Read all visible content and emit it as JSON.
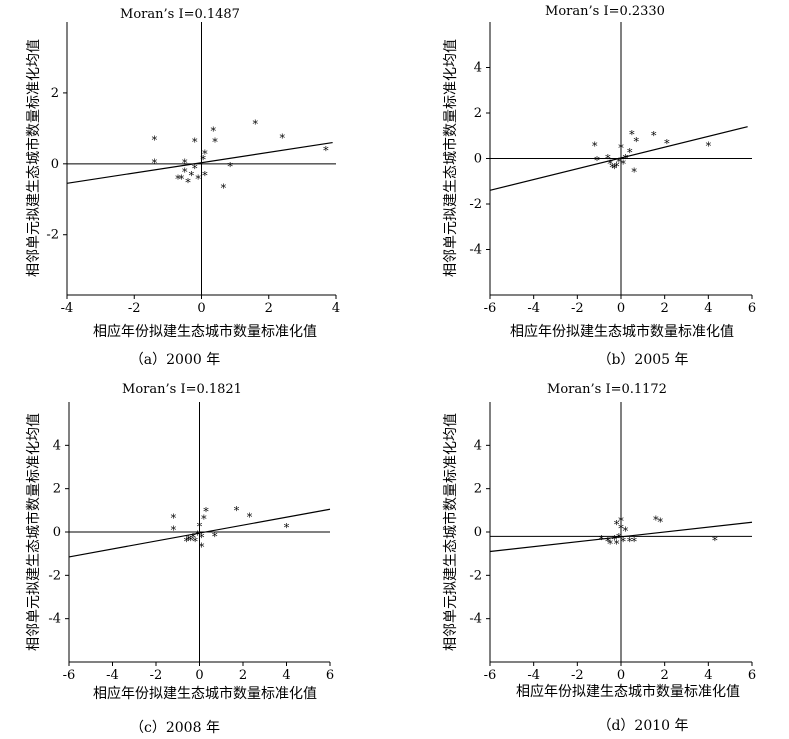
{
  "chart_data": [
    {
      "type": "scatter",
      "title": "Moran’s I=0.1487",
      "moran_i": 0.1487,
      "caption": "（a）2000 年",
      "xlabel": "相应年份拟建生态城市数量标准化值",
      "ylabel": "相邻单元拟建生态城市数量标准化均值",
      "xlim": [
        -4,
        4
      ],
      "ylim": [
        -3.7,
        4
      ],
      "xticks": [
        -4,
        -2,
        0,
        2,
        4
      ],
      "yticks": [
        -2,
        0,
        2
      ],
      "x_reference_line_y": 0,
      "regression_line": {
        "x1": -4,
        "y1": -0.55,
        "x2": 3.9,
        "y2": 0.6
      },
      "points": [
        {
          "x": -1.4,
          "y": 0.7
        },
        {
          "x": -1.4,
          "y": 0.05
        },
        {
          "x": -0.5,
          "y": 0.05
        },
        {
          "x": -0.5,
          "y": -0.2
        },
        {
          "x": -0.6,
          "y": -0.4
        },
        {
          "x": -0.3,
          "y": -0.3
        },
        {
          "x": -0.7,
          "y": -0.4
        },
        {
          "x": -0.4,
          "y": -0.5
        },
        {
          "x": -0.1,
          "y": -0.4
        },
        {
          "x": -0.2,
          "y": -0.1
        },
        {
          "x": 0.1,
          "y": -0.3
        },
        {
          "x": 0.05,
          "y": 0.15
        },
        {
          "x": -0.2,
          "y": 0.65
        },
        {
          "x": 0.1,
          "y": 0.3
        },
        {
          "x": 0.35,
          "y": 0.95
        },
        {
          "x": 0.4,
          "y": 0.65
        },
        {
          "x": 0.65,
          "y": -0.65
        },
        {
          "x": 0.85,
          "y": -0.05
        },
        {
          "x": 1.6,
          "y": 1.15
        },
        {
          "x": 2.4,
          "y": 0.75
        },
        {
          "x": 3.7,
          "y": 0.4
        }
      ]
    },
    {
      "type": "scatter",
      "title": "Moran’s I=0.2330",
      "moran_i": 0.233,
      "caption": "（b）2005 年",
      "xlabel": "相应年份拟建生态城市数量标准化值",
      "ylabel": "相邻单元拟建生态城市数量标准化均值",
      "xlim": [
        -6,
        6
      ],
      "ylim": [
        -6,
        6
      ],
      "xticks": [
        -6,
        -4,
        -2,
        0,
        2,
        4,
        6
      ],
      "yticks": [
        -4,
        -2,
        0,
        2,
        4
      ],
      "x_reference_line_y": 0,
      "regression_line": {
        "x1": -6,
        "y1": -1.4,
        "x2": 5.8,
        "y2": 1.4
      },
      "points": [
        {
          "x": -1.2,
          "y": 0.6
        },
        {
          "x": -1.1,
          "y": -0.05
        },
        {
          "x": -0.6,
          "y": 0.05
        },
        {
          "x": -0.5,
          "y": -0.2
        },
        {
          "x": -0.4,
          "y": -0.35
        },
        {
          "x": -0.3,
          "y": -0.4
        },
        {
          "x": -0.2,
          "y": -0.3
        },
        {
          "x": -0.1,
          "y": -0.1
        },
        {
          "x": 0.1,
          "y": -0.2
        },
        {
          "x": 0.2,
          "y": 0.05
        },
        {
          "x": 0.0,
          "y": 0.5
        },
        {
          "x": 0.4,
          "y": 0.3
        },
        {
          "x": 0.5,
          "y": 1.1
        },
        {
          "x": 0.7,
          "y": 0.8
        },
        {
          "x": 0.6,
          "y": -0.55
        },
        {
          "x": 1.5,
          "y": 1.05
        },
        {
          "x": 2.1,
          "y": 0.7
        },
        {
          "x": 4.0,
          "y": 0.6
        }
      ]
    },
    {
      "type": "scatter",
      "title": "Moran’s I=0.1821",
      "moran_i": 0.1821,
      "caption": "（c）2008 年",
      "xlabel": "相应年份拟建生态城市数量标准化值",
      "ylabel": "相邻单元拟建生态城市数量标准化均值",
      "xlim": [
        -6,
        6
      ],
      "ylim": [
        -6,
        6
      ],
      "xticks": [
        -6,
        -4,
        -2,
        0,
        2,
        4,
        6
      ],
      "yticks": [
        -4,
        -2,
        0,
        2,
        4
      ],
      "x_reference_line_y": 0,
      "regression_line": {
        "x1": -6,
        "y1": -1.15,
        "x2": 6,
        "y2": 1.05
      },
      "points": [
        {
          "x": -1.2,
          "y": 0.7
        },
        {
          "x": -1.2,
          "y": 0.15
        },
        {
          "x": -0.6,
          "y": -0.4
        },
        {
          "x": -0.5,
          "y": -0.3
        },
        {
          "x": -0.4,
          "y": -0.35
        },
        {
          "x": -0.3,
          "y": -0.2
        },
        {
          "x": -0.2,
          "y": -0.4
        },
        {
          "x": -0.1,
          "y": -0.1
        },
        {
          "x": 0.1,
          "y": -0.2
        },
        {
          "x": 0.0,
          "y": 0.3
        },
        {
          "x": 0.2,
          "y": 0.65
        },
        {
          "x": 0.3,
          "y": 1.0
        },
        {
          "x": 0.1,
          "y": -0.65
        },
        {
          "x": 0.7,
          "y": -0.15
        },
        {
          "x": 1.7,
          "y": 1.05
        },
        {
          "x": 2.3,
          "y": 0.75
        },
        {
          "x": 4.0,
          "y": 0.25
        }
      ]
    },
    {
      "type": "scatter",
      "title": "Moran’s I=0.1172",
      "moran_i": 0.1172,
      "caption": "（d）2010 年",
      "xlabel": "相应年份拟建生态城市数量标准化值",
      "ylabel": "相邻单元拟建生态城市数量标准化均值",
      "xlim": [
        -6,
        6
      ],
      "ylim": [
        -6,
        6
      ],
      "xticks": [
        -6,
        -4,
        -2,
        0,
        2,
        4,
        6
      ],
      "yticks": [
        -4,
        -2,
        0,
        2,
        4
      ],
      "x_reference_line_y": -0.2,
      "regression_line": {
        "x1": -6,
        "y1": -0.9,
        "x2": 6,
        "y2": 0.45
      },
      "points": [
        {
          "x": -0.9,
          "y": -0.3
        },
        {
          "x": -0.6,
          "y": -0.4
        },
        {
          "x": -0.5,
          "y": -0.5
        },
        {
          "x": -0.3,
          "y": -0.3
        },
        {
          "x": -0.2,
          "y": -0.5
        },
        {
          "x": -0.1,
          "y": -0.2
        },
        {
          "x": 0.0,
          "y": 0.2
        },
        {
          "x": 0.0,
          "y": 0.55
        },
        {
          "x": 0.1,
          "y": -0.4
        },
        {
          "x": 0.2,
          "y": 0.1
        },
        {
          "x": -0.2,
          "y": 0.4
        },
        {
          "x": 0.4,
          "y": -0.4
        },
        {
          "x": 0.6,
          "y": -0.4
        },
        {
          "x": 1.6,
          "y": 0.6
        },
        {
          "x": 1.8,
          "y": 0.5
        },
        {
          "x": 4.3,
          "y": -0.35
        }
      ]
    }
  ]
}
